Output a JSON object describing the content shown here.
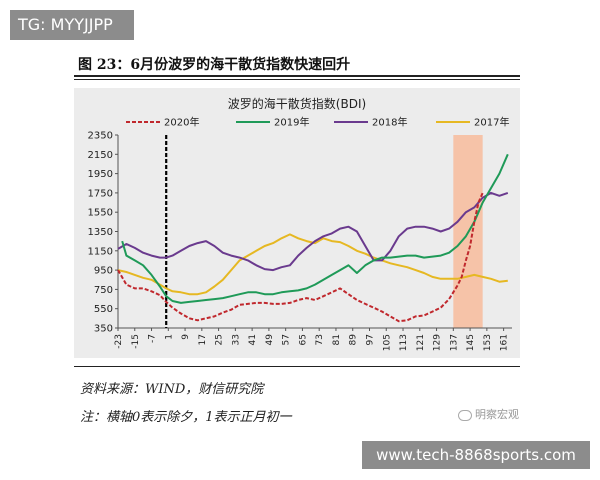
{
  "watermark_top": "TG: MYYJJPP",
  "watermark_bottom": "www.tech-8868sports.com",
  "figure_title": "图 23：6月份波罗的海干散货指数快速回升",
  "source": "资料来源：WIND，财信研究院",
  "note": "注：横轴0表示除夕，1表示正月初一",
  "wechat_label": "明察宏观",
  "colors": {
    "s2020": "#c0282d",
    "s2019": "#1f9a58",
    "s2018": "#6a3a8e",
    "s2017": "#e6b822",
    "highlight": "#f6c3a8",
    "panel": "#ececec"
  },
  "chart_data": {
    "type": "line",
    "title": "波罗的海干散货指数(BDI)",
    "ylim": [
      350,
      2350
    ],
    "yticks": [
      "2350",
      "2150",
      "1950",
      "1750",
      "1550",
      "1350",
      "1150",
      "950",
      "750",
      "550",
      "350"
    ],
    "xlim": [
      -23,
      165
    ],
    "xticks": [
      "-23",
      "-15",
      "-7",
      "1",
      "9",
      "17",
      "25",
      "33",
      "41",
      "49",
      "57",
      "65",
      "73",
      "81",
      "89",
      "97",
      "105",
      "113",
      "121",
      "129",
      "137",
      "145",
      "153",
      "161"
    ],
    "zero_marker_x": 0,
    "highlight_range": [
      137,
      151
    ],
    "grid": false,
    "legend": "top",
    "series": [
      {
        "name": "2020年",
        "style": "dashed",
        "x": [
          -23,
          -19,
          -15,
          -11,
          -7,
          -3,
          0,
          3,
          7,
          11,
          15,
          19,
          23,
          27,
          31,
          35,
          39,
          43,
          47,
          51,
          55,
          59,
          63,
          67,
          71,
          75,
          79,
          83,
          87,
          91,
          95,
          99,
          103,
          107,
          111,
          115,
          119,
          123,
          127,
          131,
          135,
          137,
          139,
          141,
          143,
          145,
          147,
          149,
          151
        ],
        "y": [
          950,
          800,
          760,
          760,
          730,
          690,
          620,
          560,
          500,
          450,
          430,
          450,
          470,
          510,
          540,
          590,
          600,
          610,
          610,
          600,
          600,
          610,
          640,
          660,
          640,
          680,
          720,
          760,
          700,
          640,
          600,
          560,
          520,
          470,
          420,
          430,
          470,
          480,
          520,
          560,
          650,
          720,
          790,
          880,
          1050,
          1200,
          1450,
          1650,
          1750
        ]
      },
      {
        "name": "2019年",
        "style": "solid",
        "x": [
          -21,
          -19,
          -15,
          -11,
          -7,
          -3,
          0,
          3,
          7,
          11,
          15,
          19,
          23,
          27,
          31,
          35,
          39,
          43,
          47,
          51,
          55,
          59,
          63,
          67,
          71,
          75,
          79,
          83,
          87,
          91,
          95,
          99,
          103,
          107,
          111,
          115,
          119,
          123,
          127,
          131,
          135,
          139,
          143,
          147,
          151,
          155,
          159,
          163
        ],
        "y": [
          1250,
          1100,
          1050,
          1000,
          900,
          780,
          680,
          630,
          610,
          620,
          630,
          640,
          650,
          660,
          680,
          700,
          720,
          720,
          700,
          700,
          720,
          730,
          740,
          760,
          800,
          850,
          900,
          950,
          1000,
          920,
          1000,
          1050,
          1080,
          1080,
          1090,
          1100,
          1100,
          1080,
          1090,
          1100,
          1130,
          1200,
          1300,
          1450,
          1650,
          1800,
          1950,
          2150
        ]
      },
      {
        "name": "2018年",
        "style": "solid",
        "x": [
          -23,
          -19,
          -15,
          -11,
          -7,
          -3,
          0,
          3,
          7,
          11,
          15,
          19,
          23,
          27,
          31,
          35,
          39,
          43,
          47,
          51,
          55,
          59,
          63,
          67,
          71,
          75,
          79,
          83,
          87,
          91,
          95,
          99,
          103,
          107,
          111,
          115,
          119,
          123,
          127,
          131,
          135,
          139,
          143,
          147,
          151,
          155,
          159,
          163
        ],
        "y": [
          1170,
          1220,
          1180,
          1130,
          1100,
          1080,
          1080,
          1100,
          1150,
          1200,
          1230,
          1250,
          1200,
          1130,
          1100,
          1080,
          1050,
          1000,
          960,
          950,
          980,
          1000,
          1100,
          1180,
          1250,
          1300,
          1330,
          1380,
          1400,
          1350,
          1200,
          1050,
          1050,
          1150,
          1300,
          1380,
          1400,
          1400,
          1380,
          1350,
          1380,
          1450,
          1550,
          1600,
          1700,
          1750,
          1720,
          1750
        ]
      },
      {
        "name": "2017年",
        "style": "solid",
        "x": [
          -23,
          -19,
          -15,
          -11,
          -7,
          -3,
          0,
          3,
          7,
          11,
          15,
          19,
          23,
          27,
          31,
          35,
          39,
          43,
          47,
          51,
          55,
          59,
          63,
          67,
          71,
          75,
          79,
          83,
          87,
          91,
          95,
          99,
          103,
          107,
          111,
          115,
          119,
          123,
          127,
          131,
          135,
          139,
          143,
          147,
          151,
          155,
          159,
          163
        ],
        "y": [
          950,
          930,
          900,
          870,
          850,
          800,
          760,
          730,
          720,
          700,
          700,
          720,
          780,
          850,
          950,
          1050,
          1100,
          1150,
          1200,
          1230,
          1280,
          1320,
          1280,
          1250,
          1230,
          1280,
          1250,
          1240,
          1200,
          1150,
          1120,
          1080,
          1050,
          1020,
          1000,
          980,
          950,
          920,
          880,
          860,
          860,
          860,
          880,
          900,
          880,
          860,
          830,
          840
        ]
      }
    ]
  }
}
